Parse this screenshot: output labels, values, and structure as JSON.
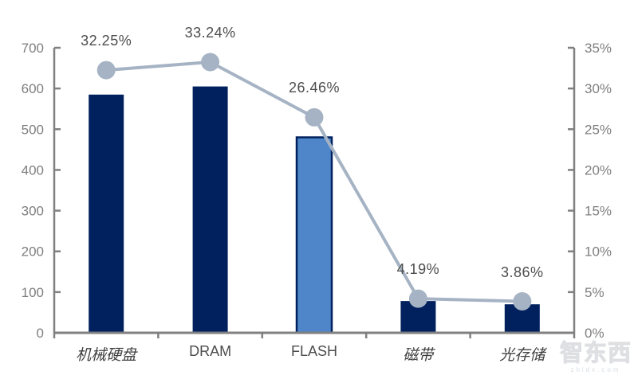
{
  "watermark": {
    "logo_text": "智东西",
    "url_text": "zhidx.com"
  },
  "chart_data": {
    "type": "bar",
    "subtype": "combo-bar-line-dual-axis",
    "title": "",
    "xlabel": "",
    "ylabel_left": "",
    "ylabel_right": "",
    "grid": false,
    "legend_position": "none",
    "categories": [
      "机械硬盘",
      "DRAM",
      "FLASH",
      "磁带",
      "光存储"
    ],
    "category_label_styles": [
      "kai",
      "latin",
      "latin",
      "kai",
      "kai"
    ],
    "series": [
      {
        "type": "bar",
        "axis": "left",
        "values": [
          585,
          605,
          480,
          78,
          70
        ]
      },
      {
        "type": "line",
        "axis": "right",
        "values_percent": [
          32.25,
          33.24,
          26.46,
          4.19,
          3.86
        ],
        "point_labels": [
          "32.25%",
          "33.24%",
          "26.46%",
          "4.19%",
          "3.86%"
        ]
      }
    ],
    "left_axis": {
      "min": 0,
      "max": 700,
      "step": 100,
      "tick_labels": [
        "700",
        "600",
        "500",
        "400",
        "300",
        "200",
        "100",
        "0"
      ]
    },
    "right_axis": {
      "min_percent": 0,
      "max_percent": 35,
      "step_percent": 5,
      "tick_labels": [
        "35%",
        "30%",
        "25%",
        "20%",
        "15%",
        "10%",
        "5%",
        "0%"
      ]
    },
    "colors": {
      "bar": "#00215E",
      "bar_highlight_fill": "#4F86C9",
      "bar_highlight_border": "#00215E",
      "highlight_index": 2,
      "line": "#A5B3C4",
      "axis": "#808080",
      "tick_label": "#7F7F7F",
      "data_label": "#4D4D4D"
    }
  }
}
